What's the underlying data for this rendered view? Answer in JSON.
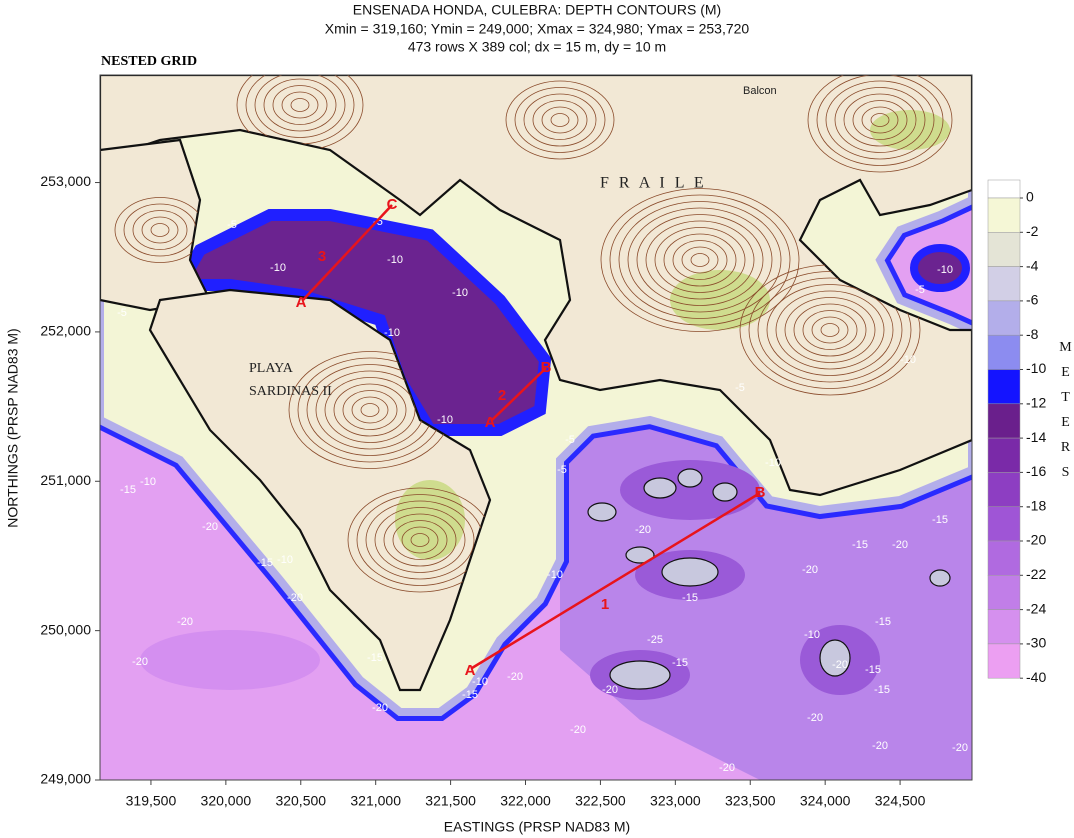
{
  "header": {
    "title": "ENSENADA HONDA, CULEBRA: DEPTH CONTOURS (M)",
    "subtitle": "Xmin = 319,160; Ymin = 249,000; Xmax = 324,980; Ymax = 253,720",
    "grid_info": "473 rows X 389 col; dx = 15 m, dy = 10 m"
  },
  "map": {
    "label": "NESTED GRID",
    "xlabel": "EASTINGS (PRSP NAD83 M)",
    "ylabel": "NORTHINGS (PRSP NAD83 M)",
    "xlim": [
      319160,
      324980
    ],
    "ylim": [
      249000,
      253720
    ],
    "xticks": [
      {
        "value": 319500,
        "label": "319,500"
      },
      {
        "value": 320000,
        "label": "320,000"
      },
      {
        "value": 320500,
        "label": "320,500"
      },
      {
        "value": 321000,
        "label": "321,000"
      },
      {
        "value": 321500,
        "label": "321,500"
      },
      {
        "value": 322000,
        "label": "322,000"
      },
      {
        "value": 322500,
        "label": "322,500"
      },
      {
        "value": 323000,
        "label": "323,000"
      },
      {
        "value": 323500,
        "label": "323,500"
      },
      {
        "value": 324000,
        "label": "324,000"
      },
      {
        "value": 324500,
        "label": "324,500"
      }
    ],
    "yticks": [
      {
        "value": 249000,
        "label": "249,000"
      },
      {
        "value": 250000,
        "label": "250,000"
      },
      {
        "value": 251000,
        "label": "251,000"
      },
      {
        "value": 252000,
        "label": "252,000"
      },
      {
        "value": 253000,
        "label": "253,000"
      }
    ],
    "place_names": [
      "PLAYA",
      "SARDINAS II",
      "F R A I L E",
      "Balcon"
    ],
    "transects": [
      {
        "name": "1",
        "start": "A",
        "end": "B"
      },
      {
        "name": "2",
        "start": "A",
        "end": "B"
      },
      {
        "name": "3",
        "start": "A",
        "end": "C"
      }
    ],
    "contour_labels": [
      -5,
      -10,
      -10,
      -10,
      -5,
      -5,
      -10,
      -10,
      -15,
      -10,
      -20,
      -15,
      -10,
      -20,
      -20,
      -20,
      -20,
      -15,
      -10,
      -15,
      -20,
      -20,
      -5,
      -5,
      -10,
      -20,
      -15,
      -10,
      -5,
      -5,
      -10,
      -10,
      -15,
      -20,
      -15,
      -20,
      -10,
      -15,
      -20,
      -15,
      -15,
      -20,
      -20,
      -20,
      -20,
      -25,
      -15,
      -20
    ]
  },
  "colorbar": {
    "title": "METERS",
    "levels": [
      0,
      -2,
      -4,
      -6,
      -8,
      -10,
      -12,
      -14,
      -16,
      -18,
      -20,
      -22,
      -24,
      -30,
      -40
    ],
    "colors": [
      "#f5f7d6",
      "#e4e4d6",
      "#d2cfe6",
      "#b3aeea",
      "#8c8cf0",
      "#1414ff",
      "#6a1f8c",
      "#7a2aa8",
      "#8d3ec2",
      "#9f55d6",
      "#b06ae0",
      "#c17ee8",
      "#d590ee",
      "#ec9ff2"
    ]
  }
}
